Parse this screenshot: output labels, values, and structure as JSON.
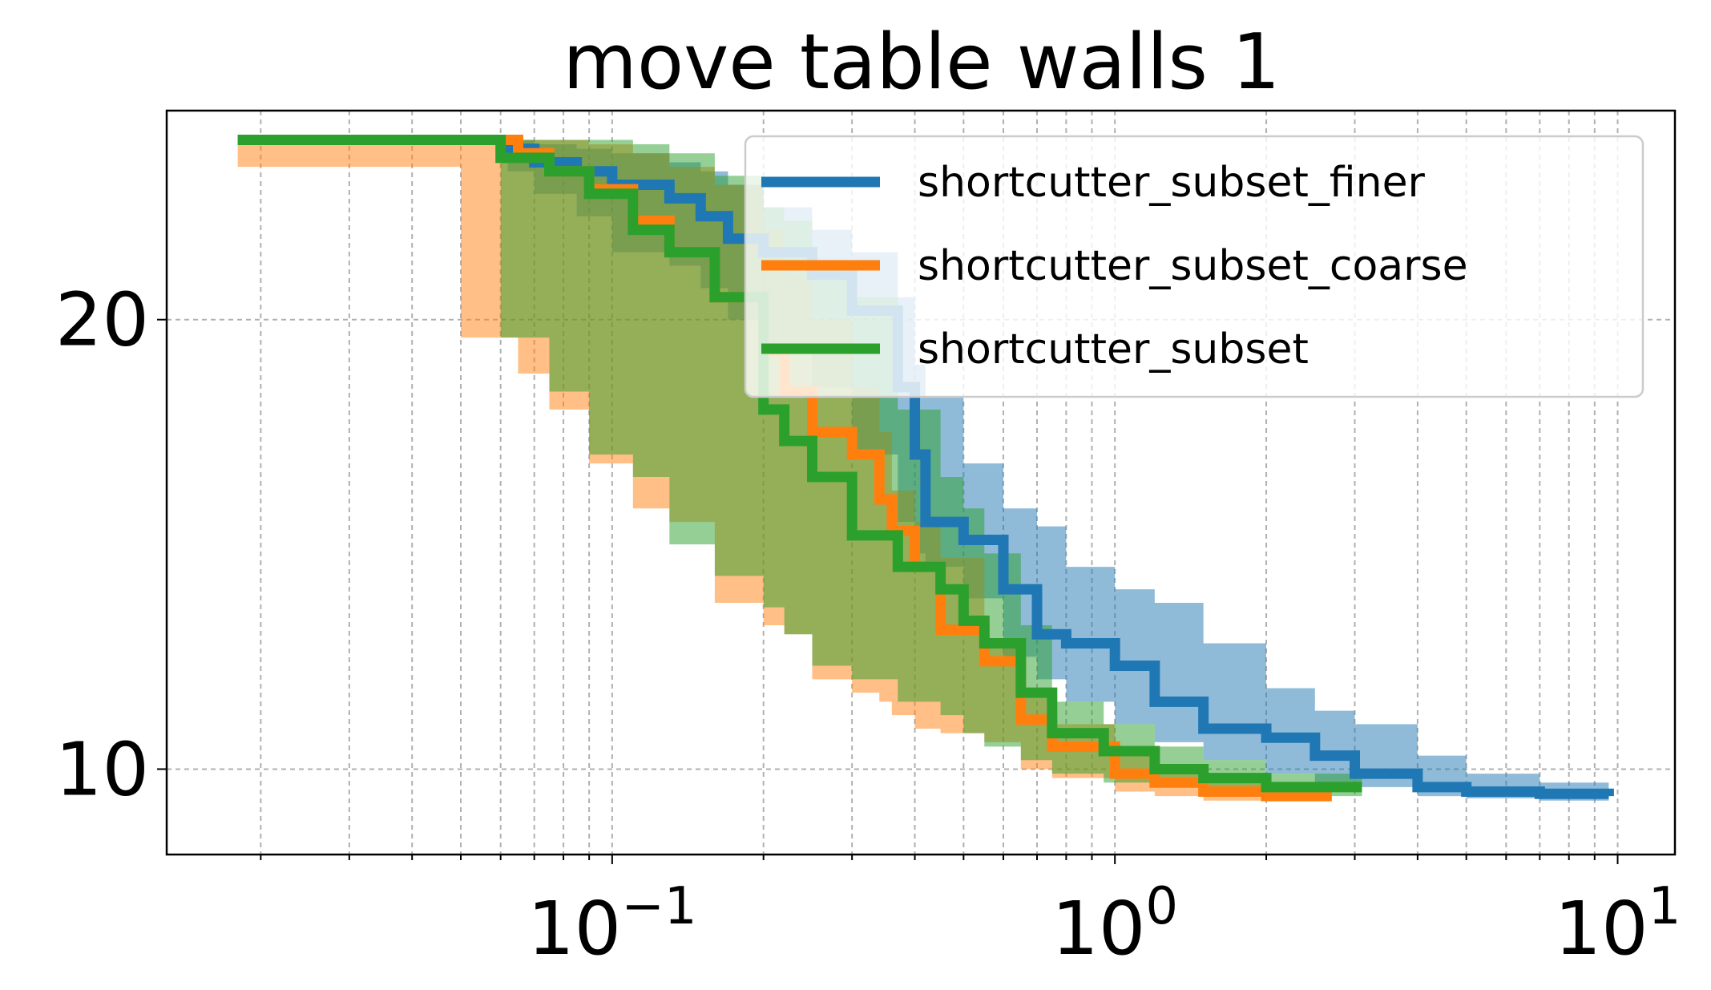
{
  "chart_data": {
    "type": "line",
    "title": "move table walls 1",
    "xlabel": "",
    "ylabel": "",
    "xscale": "log",
    "xlim": [
      0.013,
      13
    ],
    "ylim": [
      8.1,
      24.65
    ],
    "x_ticks": [
      {
        "value": 0.1,
        "base": "10",
        "exp": "−1"
      },
      {
        "value": 1,
        "base": "10",
        "exp": "0"
      },
      {
        "value": 10,
        "base": "10",
        "exp": "1"
      }
    ],
    "y_ticks": [
      {
        "value": 10,
        "label": "10"
      },
      {
        "value": 20,
        "label": "20"
      }
    ],
    "grid": true,
    "legend_position": "upper-right",
    "series": [
      {
        "name": "shortcutter_subset_finer",
        "color": "#1f77b4",
        "x": [
          0.04,
          0.062,
          0.07,
          0.085,
          0.1,
          0.13,
          0.15,
          0.17,
          0.2,
          0.25,
          0.3,
          0.37,
          0.4,
          0.42,
          0.5,
          0.6,
          0.7,
          0.8,
          1.0,
          1.2,
          1.5,
          2.0,
          2.5,
          3.0,
          4.0,
          5.0,
          7.0,
          9.6
        ],
        "y": [
          24.0,
          23.8,
          23.5,
          23.3,
          23.0,
          22.7,
          22.3,
          21.8,
          21.5,
          21.0,
          20.2,
          18.5,
          17.0,
          15.5,
          15.1,
          14.0,
          13.0,
          12.8,
          12.3,
          11.5,
          10.9,
          10.7,
          10.3,
          9.9,
          9.6,
          9.5,
          9.45,
          9.4
        ],
        "upper": [
          24.0,
          24.0,
          23.9,
          23.8,
          23.7,
          23.5,
          23.3,
          23.0,
          22.5,
          22.0,
          21.5,
          20.5,
          19.0,
          18.3,
          16.8,
          15.8,
          15.4,
          14.5,
          14.0,
          13.7,
          12.8,
          11.8,
          11.3,
          11.0,
          10.3,
          9.9,
          9.7,
          9.6
        ],
        "lower": [
          24.0,
          23.3,
          22.8,
          22.3,
          21.5,
          21.2,
          20.7,
          20.0,
          19.3,
          18.5,
          17.0,
          15.5,
          14.8,
          14.5,
          13.8,
          12.5,
          12.0,
          11.5,
          11.0,
          10.6,
          10.2,
          9.9,
          9.7,
          9.6,
          9.4,
          9.35,
          9.3,
          9.3
        ]
      },
      {
        "name": "shortcutter_subset_coarse",
        "color": "#ff7f0e",
        "x": [
          0.018,
          0.05,
          0.065,
          0.075,
          0.09,
          0.11,
          0.13,
          0.16,
          0.2,
          0.22,
          0.25,
          0.3,
          0.34,
          0.36,
          0.4,
          0.45,
          0.55,
          0.65,
          0.75,
          1.0,
          1.2,
          1.5,
          2.0,
          2.7
        ],
        "y": [
          24.0,
          24.0,
          23.7,
          23.3,
          22.9,
          22.2,
          21.5,
          20.5,
          19.3,
          18.4,
          17.5,
          17.0,
          16.0,
          15.3,
          14.5,
          13.1,
          12.4,
          11.1,
          10.5,
          9.9,
          9.7,
          9.5,
          9.4,
          9.4
        ],
        "upper": [
          24.0,
          24.0,
          24.0,
          24.0,
          23.9,
          23.7,
          23.4,
          23.0,
          22.0,
          21.0,
          20.0,
          18.5,
          17.5,
          16.2,
          15.5,
          14.7,
          12.8,
          11.8,
          11.0,
          10.3,
          10.0,
          9.8,
          9.6,
          9.5
        ],
        "lower": [
          23.4,
          19.6,
          18.8,
          18.0,
          16.8,
          15.8,
          15.5,
          13.7,
          13.2,
          13.0,
          12.0,
          11.7,
          11.5,
          11.2,
          10.9,
          10.8,
          10.6,
          10.0,
          9.8,
          9.5,
          9.4,
          9.3,
          9.3,
          9.3
        ]
      },
      {
        "name": "shortcutter_subset",
        "color": "#2ca02c",
        "x": [
          0.018,
          0.06,
          0.075,
          0.09,
          0.11,
          0.13,
          0.16,
          0.2,
          0.22,
          0.25,
          0.3,
          0.37,
          0.45,
          0.5,
          0.55,
          0.65,
          0.75,
          0.95,
          1.2,
          1.5,
          2.0,
          3.1
        ],
        "y": [
          24.0,
          23.6,
          23.3,
          22.8,
          22.0,
          21.5,
          20.5,
          18.0,
          17.3,
          16.5,
          15.2,
          14.5,
          14.0,
          13.3,
          12.8,
          11.7,
          10.8,
          10.4,
          10.0,
          9.8,
          9.6,
          9.6
        ],
        "upper": [
          24.0,
          24.0,
          24.0,
          24.0,
          23.9,
          23.7,
          23.2,
          22.5,
          22.2,
          21.0,
          20.5,
          18.0,
          16.5,
          15.8,
          14.8,
          13.2,
          11.5,
          11.0,
          10.5,
          10.2,
          9.9,
          9.9
        ],
        "lower": [
          24.0,
          19.6,
          18.4,
          17.0,
          16.5,
          15.0,
          14.3,
          13.6,
          13.0,
          12.3,
          12.0,
          11.5,
          11.2,
          10.8,
          10.5,
          10.2,
          9.9,
          9.7,
          9.6,
          9.5,
          9.4,
          9.4
        ]
      }
    ]
  }
}
